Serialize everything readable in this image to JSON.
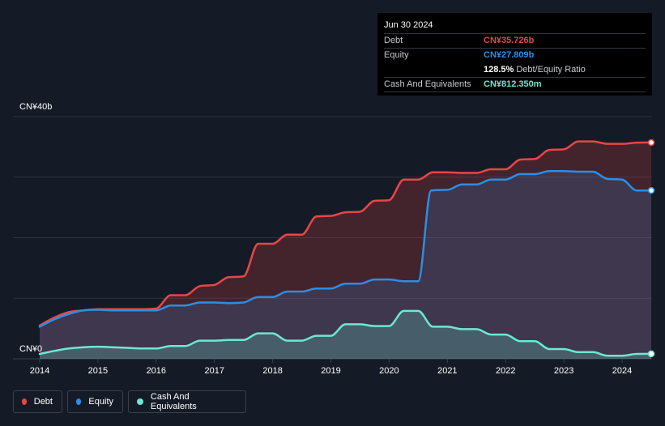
{
  "tooltip": {
    "date": "Jun 30 2024",
    "debt_label": "Debt",
    "debt_value": "CN¥35.726b",
    "equity_label": "Equity",
    "equity_value": "CN¥27.809b",
    "ratio_value": "128.5%",
    "ratio_label": "Debt/Equity Ratio",
    "cash_label": "Cash And Equivalents",
    "cash_value": "CN¥812.350m"
  },
  "colors": {
    "debt": "#e84646",
    "equity": "#2b8ee6",
    "cash": "#6ee7d2",
    "grid": "#2c323c"
  },
  "legend": [
    {
      "label": "Debt",
      "color": "#e84646"
    },
    {
      "label": "Equity",
      "color": "#2b8ee6"
    },
    {
      "label": "Cash And Equivalents",
      "color": "#6ee7d2"
    }
  ],
  "chart_data": {
    "type": "area",
    "y_unit": "CN¥b",
    "ylim": [
      0,
      40
    ],
    "y_ticks": [
      {
        "value": 40,
        "label": "CN¥40b"
      },
      {
        "value": 0,
        "label": "CN¥0"
      }
    ],
    "xlim": [
      2014,
      2024.5
    ],
    "x_ticks": [
      2014,
      2015,
      2016,
      2017,
      2018,
      2019,
      2020,
      2021,
      2022,
      2023,
      2024
    ],
    "grid": true,
    "legend_position": "bottom-left",
    "series": [
      {
        "name": "Debt",
        "key": "debt",
        "points": [
          [
            2014.0,
            5.5
          ],
          [
            2014.25,
            6.8
          ],
          [
            2014.5,
            7.7
          ],
          [
            2014.75,
            8.0
          ],
          [
            2015.0,
            8.2
          ],
          [
            2015.25,
            8.2
          ],
          [
            2015.5,
            8.2
          ],
          [
            2015.75,
            8.2
          ],
          [
            2016.0,
            8.3
          ],
          [
            2016.25,
            10.5
          ],
          [
            2016.5,
            10.5
          ],
          [
            2016.75,
            12.0
          ],
          [
            2017.0,
            12.2
          ],
          [
            2017.25,
            13.5
          ],
          [
            2017.5,
            13.6
          ],
          [
            2017.75,
            19.0
          ],
          [
            2018.0,
            19.0
          ],
          [
            2018.25,
            20.5
          ],
          [
            2018.5,
            20.5
          ],
          [
            2018.75,
            23.5
          ],
          [
            2019.0,
            23.6
          ],
          [
            2019.25,
            24.2
          ],
          [
            2019.5,
            24.3
          ],
          [
            2019.75,
            26.1
          ],
          [
            2020.0,
            26.2
          ],
          [
            2020.25,
            29.6
          ],
          [
            2020.5,
            29.6
          ],
          [
            2020.75,
            30.8
          ],
          [
            2021.0,
            30.8
          ],
          [
            2021.25,
            30.7
          ],
          [
            2021.5,
            30.7
          ],
          [
            2021.75,
            31.3
          ],
          [
            2022.0,
            31.3
          ],
          [
            2022.25,
            32.9
          ],
          [
            2022.5,
            33.0
          ],
          [
            2022.75,
            34.5
          ],
          [
            2023.0,
            34.6
          ],
          [
            2023.25,
            35.9
          ],
          [
            2023.5,
            35.9
          ],
          [
            2023.75,
            35.5
          ],
          [
            2024.0,
            35.5
          ],
          [
            2024.25,
            35.7
          ],
          [
            2024.5,
            35.726
          ]
        ]
      },
      {
        "name": "Equity",
        "key": "equity",
        "points": [
          [
            2014.0,
            5.3
          ],
          [
            2014.25,
            6.5
          ],
          [
            2014.5,
            7.4
          ],
          [
            2014.75,
            8.0
          ],
          [
            2015.0,
            8.1
          ],
          [
            2015.25,
            8.0
          ],
          [
            2015.5,
            8.0
          ],
          [
            2015.75,
            8.0
          ],
          [
            2016.0,
            8.0
          ],
          [
            2016.25,
            8.8
          ],
          [
            2016.5,
            8.8
          ],
          [
            2016.75,
            9.3
          ],
          [
            2017.0,
            9.3
          ],
          [
            2017.25,
            9.2
          ],
          [
            2017.5,
            9.3
          ],
          [
            2017.75,
            10.2
          ],
          [
            2018.0,
            10.2
          ],
          [
            2018.25,
            11.1
          ],
          [
            2018.5,
            11.1
          ],
          [
            2018.75,
            11.6
          ],
          [
            2019.0,
            11.6
          ],
          [
            2019.25,
            12.4
          ],
          [
            2019.5,
            12.4
          ],
          [
            2019.75,
            13.1
          ],
          [
            2020.0,
            13.1
          ],
          [
            2020.25,
            12.8
          ],
          [
            2020.5,
            12.8
          ],
          [
            2020.72,
            27.8
          ],
          [
            2021.0,
            27.9
          ],
          [
            2021.25,
            28.8
          ],
          [
            2021.5,
            28.8
          ],
          [
            2021.75,
            29.6
          ],
          [
            2022.0,
            29.6
          ],
          [
            2022.25,
            30.5
          ],
          [
            2022.5,
            30.5
          ],
          [
            2022.75,
            31.0
          ],
          [
            2023.0,
            31.0
          ],
          [
            2023.25,
            30.9
          ],
          [
            2023.5,
            30.9
          ],
          [
            2023.75,
            29.7
          ],
          [
            2024.0,
            29.6
          ],
          [
            2024.25,
            27.8
          ],
          [
            2024.5,
            27.809
          ]
        ]
      },
      {
        "name": "Cash And Equivalents",
        "key": "cash",
        "points": [
          [
            2014.0,
            0.8
          ],
          [
            2014.25,
            1.3
          ],
          [
            2014.5,
            1.7
          ],
          [
            2014.75,
            1.9
          ],
          [
            2015.0,
            2.0
          ],
          [
            2015.25,
            1.9
          ],
          [
            2015.5,
            1.8
          ],
          [
            2015.75,
            1.7
          ],
          [
            2016.0,
            1.7
          ],
          [
            2016.25,
            2.1
          ],
          [
            2016.5,
            2.1
          ],
          [
            2016.75,
            3.0
          ],
          [
            2017.0,
            3.0
          ],
          [
            2017.25,
            3.1
          ],
          [
            2017.5,
            3.1
          ],
          [
            2017.75,
            4.2
          ],
          [
            2018.0,
            4.2
          ],
          [
            2018.25,
            3.0
          ],
          [
            2018.5,
            3.0
          ],
          [
            2018.75,
            3.8
          ],
          [
            2019.0,
            3.8
          ],
          [
            2019.25,
            5.7
          ],
          [
            2019.5,
            5.7
          ],
          [
            2019.75,
            5.4
          ],
          [
            2020.0,
            5.4
          ],
          [
            2020.25,
            7.9
          ],
          [
            2020.5,
            7.9
          ],
          [
            2020.75,
            5.3
          ],
          [
            2021.0,
            5.3
          ],
          [
            2021.25,
            4.9
          ],
          [
            2021.5,
            4.9
          ],
          [
            2021.75,
            4.0
          ],
          [
            2022.0,
            4.0
          ],
          [
            2022.25,
            2.9
          ],
          [
            2022.5,
            2.9
          ],
          [
            2022.75,
            1.6
          ],
          [
            2023.0,
            1.6
          ],
          [
            2023.25,
            1.1
          ],
          [
            2023.5,
            1.1
          ],
          [
            2023.75,
            0.5
          ],
          [
            2024.0,
            0.5
          ],
          [
            2024.25,
            0.8
          ],
          [
            2024.5,
            0.812
          ]
        ]
      }
    ]
  }
}
